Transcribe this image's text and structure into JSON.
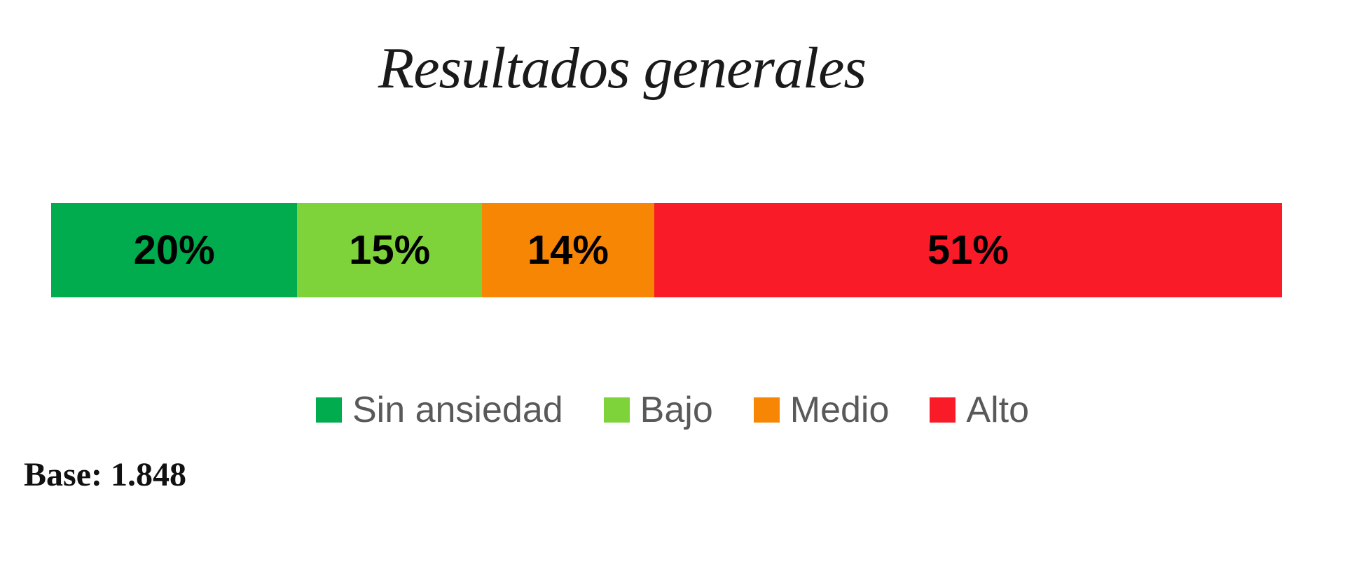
{
  "chart_data": {
    "type": "bar",
    "variant": "horizontal-stacked-100pct",
    "title": "Resultados generales",
    "categories": [
      "Sin ansiedad",
      "Bajo",
      "Medio",
      "Alto"
    ],
    "values": [
      20,
      15,
      14,
      51
    ],
    "unit": "%",
    "segments": [
      {
        "label": "Sin ansiedad",
        "value": 20,
        "display": "20%",
        "color": "#00AC4E"
      },
      {
        "label": "Bajo",
        "value": 15,
        "display": "15%",
        "color": "#7ED33B"
      },
      {
        "label": "Medio",
        "value": 14,
        "display": "14%",
        "color": "#F88605"
      },
      {
        "label": "Alto",
        "value": 51,
        "display": "51%",
        "color": "#FA1B28"
      }
    ],
    "legend_position": "bottom-center",
    "grid": false,
    "value_label_color": "#000000",
    "legend_text_color": "#595959",
    "base_note": "Base: 1.848"
  }
}
